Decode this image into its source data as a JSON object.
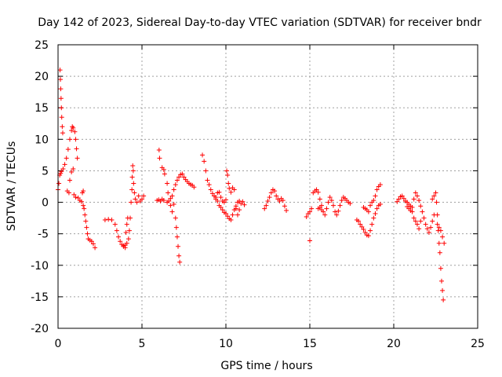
{
  "chart_data": {
    "type": "scatter",
    "title": "Day 142 of 2023, Sidereal Day-to-day VTEC variation (SDTVAR) for receiver bndr",
    "xlabel": "GPS time / hours",
    "ylabel": "SDTVAR / TECUs",
    "xlim": [
      0,
      25
    ],
    "ylim": [
      -20,
      25
    ],
    "xticks": [
      0,
      5,
      10,
      15,
      20,
      25
    ],
    "yticks": [
      -20,
      -15,
      -10,
      -5,
      0,
      5,
      10,
      15,
      20,
      25
    ],
    "grid": true,
    "marker": "plus",
    "color": "#ff0000",
    "series": [
      {
        "name": "sdtvar",
        "points": [
          [
            0.0,
            2.0
          ],
          [
            0.05,
            3.0
          ],
          [
            0.1,
            4.3
          ],
          [
            0.15,
            4.6
          ],
          [
            0.2,
            4.9
          ],
          [
            0.3,
            5.3
          ],
          [
            0.4,
            6.0
          ],
          [
            0.5,
            7.0
          ],
          [
            0.6,
            8.4
          ],
          [
            0.7,
            10.0
          ],
          [
            0.8,
            11.4
          ],
          [
            0.85,
            12.0
          ],
          [
            0.9,
            11.8
          ],
          [
            1.0,
            11.2
          ],
          [
            1.05,
            10.0
          ],
          [
            1.1,
            8.5
          ],
          [
            1.15,
            7.0
          ],
          [
            0.12,
            21.0
          ],
          [
            0.14,
            19.5
          ],
          [
            0.16,
            18.0
          ],
          [
            0.18,
            16.5
          ],
          [
            0.2,
            15.0
          ],
          [
            0.22,
            13.5
          ],
          [
            0.25,
            12.0
          ],
          [
            0.28,
            11.0
          ],
          [
            0.55,
            1.8
          ],
          [
            0.65,
            1.5
          ],
          [
            0.7,
            3.5
          ],
          [
            0.8,
            4.8
          ],
          [
            0.9,
            5.3
          ],
          [
            0.95,
            1.2
          ],
          [
            1.05,
            0.8
          ],
          [
            1.2,
            0.7
          ],
          [
            1.3,
            0.3
          ],
          [
            1.4,
            0.1
          ],
          [
            1.5,
            -0.5
          ],
          [
            1.55,
            -1.0
          ],
          [
            1.6,
            -2.0
          ],
          [
            1.65,
            -3.0
          ],
          [
            1.7,
            -4.0
          ],
          [
            1.75,
            -5.0
          ],
          [
            1.8,
            -5.8
          ],
          [
            1.9,
            -6.0
          ],
          [
            2.0,
            -6.2
          ],
          [
            2.1,
            -6.6
          ],
          [
            2.2,
            -7.2
          ],
          [
            1.45,
            1.5
          ],
          [
            1.5,
            1.8
          ],
          [
            2.8,
            -2.8
          ],
          [
            3.0,
            -2.7
          ],
          [
            3.2,
            -2.8
          ],
          [
            3.4,
            -3.5
          ],
          [
            3.5,
            -4.5
          ],
          [
            3.6,
            -5.5
          ],
          [
            3.7,
            -6.2
          ],
          [
            3.8,
            -6.7
          ],
          [
            3.9,
            -6.9
          ],
          [
            4.0,
            -6.8
          ],
          [
            4.1,
            -6.5
          ],
          [
            4.2,
            -5.8
          ],
          [
            4.25,
            -4.5
          ],
          [
            4.3,
            -2.5
          ],
          [
            4.35,
            0.0
          ],
          [
            4.4,
            2.0
          ],
          [
            4.42,
            4.0
          ],
          [
            4.45,
            5.8
          ],
          [
            4.48,
            5.0
          ],
          [
            4.5,
            3.0
          ],
          [
            4.55,
            1.5
          ],
          [
            4.6,
            0.5
          ],
          [
            4.7,
            0.0
          ],
          [
            4.8,
            1.0
          ],
          [
            4.9,
            0.2
          ],
          [
            5.0,
            0.5
          ],
          [
            5.1,
            1.0
          ],
          [
            3.9,
            -7.0
          ],
          [
            4.0,
            -7.2
          ],
          [
            4.05,
            -4.8
          ],
          [
            4.1,
            -3.5
          ],
          [
            4.15,
            -2.5
          ],
          [
            5.9,
            0.3
          ],
          [
            6.0,
            0.4
          ],
          [
            6.1,
            0.2
          ],
          [
            6.2,
            0.5
          ],
          [
            6.3,
            0.3
          ],
          [
            6.5,
            0.0
          ],
          [
            6.6,
            0.2
          ],
          [
            6.7,
            0.6
          ],
          [
            6.8,
            1.0
          ],
          [
            6.9,
            2.0
          ],
          [
            7.0,
            2.8
          ],
          [
            7.1,
            3.5
          ],
          [
            7.2,
            4.0
          ],
          [
            7.3,
            4.4
          ],
          [
            7.4,
            4.5
          ],
          [
            7.5,
            4.0
          ],
          [
            7.6,
            3.6
          ],
          [
            7.7,
            3.3
          ],
          [
            7.8,
            3.0
          ],
          [
            7.9,
            2.8
          ],
          [
            8.0,
            2.7
          ],
          [
            8.1,
            2.4
          ],
          [
            6.02,
            8.3
          ],
          [
            6.05,
            7.0
          ],
          [
            6.2,
            5.5
          ],
          [
            6.3,
            5.2
          ],
          [
            6.35,
            4.5
          ],
          [
            6.5,
            3.0
          ],
          [
            6.55,
            1.5
          ],
          [
            6.7,
            -0.5
          ],
          [
            6.8,
            -1.5
          ],
          [
            6.9,
            -0.3
          ],
          [
            7.0,
            -2.5
          ],
          [
            7.05,
            -4.0
          ],
          [
            7.1,
            -5.5
          ],
          [
            7.15,
            -7.0
          ],
          [
            7.2,
            -8.5
          ],
          [
            7.25,
            -9.5
          ],
          [
            8.6,
            7.5
          ],
          [
            8.7,
            6.5
          ],
          [
            8.8,
            5.0
          ],
          [
            8.9,
            3.5
          ],
          [
            9.0,
            2.8
          ],
          [
            9.1,
            2.0
          ],
          [
            9.2,
            1.4
          ],
          [
            9.3,
            1.0
          ],
          [
            9.4,
            0.5
          ],
          [
            9.5,
            0.2
          ],
          [
            9.6,
            -0.5
          ],
          [
            9.7,
            -0.8
          ],
          [
            9.8,
            -1.2
          ],
          [
            9.9,
            -1.6
          ],
          [
            10.0,
            -1.8
          ],
          [
            10.1,
            -2.2
          ],
          [
            10.2,
            -2.6
          ],
          [
            10.3,
            -2.8
          ],
          [
            10.4,
            -2.0
          ],
          [
            10.5,
            -1.2
          ],
          [
            10.6,
            -0.6
          ],
          [
            10.7,
            0.0
          ],
          [
            10.8,
            0.2
          ],
          [
            10.9,
            -0.2
          ],
          [
            11.0,
            0.1
          ],
          [
            11.1,
            -0.4
          ],
          [
            9.4,
            0.8
          ],
          [
            9.5,
            1.5
          ],
          [
            9.6,
            1.6
          ],
          [
            9.7,
            0.8
          ],
          [
            9.8,
            0.2
          ],
          [
            9.9,
            0.0
          ],
          [
            10.0,
            0.4
          ],
          [
            10.05,
            5.0
          ],
          [
            10.1,
            4.3
          ],
          [
            10.15,
            3.0
          ],
          [
            10.2,
            2.2
          ],
          [
            10.3,
            1.6
          ],
          [
            10.4,
            2.3
          ],
          [
            10.5,
            2.0
          ],
          [
            10.6,
            -1.0
          ],
          [
            10.7,
            -2.0
          ],
          [
            10.8,
            -1.2
          ],
          [
            12.3,
            -1.0
          ],
          [
            12.4,
            -0.5
          ],
          [
            12.5,
            0.2
          ],
          [
            12.6,
            0.8
          ],
          [
            12.7,
            1.5
          ],
          [
            12.8,
            2.0
          ],
          [
            12.9,
            1.8
          ],
          [
            13.0,
            1.0
          ],
          [
            13.1,
            0.5
          ],
          [
            13.2,
            0.2
          ],
          [
            13.3,
            0.6
          ],
          [
            13.4,
            0.3
          ],
          [
            13.5,
            -0.6
          ],
          [
            13.6,
            -1.3
          ],
          [
            14.8,
            -2.3
          ],
          [
            14.9,
            -1.8
          ],
          [
            15.0,
            -1.5
          ],
          [
            15.1,
            -1.0
          ],
          [
            15.2,
            1.5
          ],
          [
            15.3,
            1.8
          ],
          [
            15.4,
            2.0
          ],
          [
            15.5,
            1.6
          ],
          [
            15.6,
            0.5
          ],
          [
            15.7,
            -0.5
          ],
          [
            15.8,
            -1.5
          ],
          [
            15.9,
            -2.0
          ],
          [
            16.0,
            -1.0
          ],
          [
            16.1,
            0.0
          ],
          [
            16.2,
            0.8
          ],
          [
            16.3,
            0.3
          ],
          [
            16.4,
            -0.5
          ],
          [
            16.5,
            -1.5
          ],
          [
            16.6,
            -2.0
          ],
          [
            16.7,
            -1.4
          ],
          [
            16.8,
            -0.5
          ],
          [
            16.9,
            0.3
          ],
          [
            17.0,
            0.8
          ],
          [
            17.1,
            0.6
          ],
          [
            17.2,
            0.3
          ],
          [
            17.3,
            0.0
          ],
          [
            17.4,
            -0.2
          ],
          [
            15.0,
            -6.1
          ],
          [
            15.5,
            -1.0
          ],
          [
            15.6,
            -0.8
          ],
          [
            15.7,
            -1.2
          ],
          [
            17.8,
            -2.8
          ],
          [
            17.9,
            -3.0
          ],
          [
            18.0,
            -3.5
          ],
          [
            18.1,
            -3.9
          ],
          [
            18.2,
            -4.3
          ],
          [
            18.3,
            -4.8
          ],
          [
            18.4,
            -5.2
          ],
          [
            18.5,
            -5.3
          ],
          [
            18.6,
            -4.5
          ],
          [
            18.7,
            -3.5
          ],
          [
            18.8,
            -2.5
          ],
          [
            18.9,
            -1.8
          ],
          [
            19.0,
            -1.0
          ],
          [
            19.1,
            -0.5
          ],
          [
            19.2,
            -0.3
          ],
          [
            18.2,
            -0.8
          ],
          [
            18.3,
            -1.0
          ],
          [
            18.4,
            -1.2
          ],
          [
            18.5,
            -1.5
          ],
          [
            18.6,
            -0.5
          ],
          [
            18.7,
            0.0
          ],
          [
            18.8,
            0.3
          ],
          [
            18.9,
            1.0
          ],
          [
            19.0,
            2.0
          ],
          [
            19.1,
            2.5
          ],
          [
            19.2,
            2.8
          ],
          [
            20.2,
            0.1
          ],
          [
            20.3,
            0.5
          ],
          [
            20.4,
            0.9
          ],
          [
            20.5,
            1.0
          ],
          [
            20.6,
            0.6
          ],
          [
            20.7,
            0.2
          ],
          [
            20.8,
            0.0
          ],
          [
            20.9,
            -0.3
          ],
          [
            21.0,
            -0.6
          ],
          [
            21.1,
            -0.8
          ],
          [
            21.2,
            0.5
          ],
          [
            21.3,
            1.5
          ],
          [
            21.4,
            1.0
          ],
          [
            21.5,
            0.3
          ],
          [
            21.6,
            -0.6
          ],
          [
            21.7,
            -1.5
          ],
          [
            21.8,
            -2.5
          ],
          [
            21.9,
            -3.5
          ],
          [
            22.0,
            -4.2
          ],
          [
            22.1,
            -4.8
          ],
          [
            22.2,
            -4.0
          ],
          [
            22.3,
            -3.0
          ],
          [
            22.4,
            -2.0
          ],
          [
            20.8,
            -0.7
          ],
          [
            20.9,
            -1.0
          ],
          [
            21.0,
            -1.3
          ],
          [
            21.1,
            -1.5
          ],
          [
            21.2,
            -2.5
          ],
          [
            21.3,
            -3.0
          ],
          [
            21.4,
            -3.5
          ],
          [
            21.5,
            -4.2
          ],
          [
            21.6,
            -3.0
          ],
          [
            22.3,
            0.5
          ],
          [
            22.4,
            1.0
          ],
          [
            22.5,
            1.5
          ],
          [
            22.55,
            0.0
          ],
          [
            22.6,
            -2.0
          ],
          [
            22.65,
            -4.5
          ],
          [
            22.7,
            -6.5
          ],
          [
            22.75,
            -8.0
          ],
          [
            22.8,
            -10.5
          ],
          [
            22.85,
            -12.5
          ],
          [
            22.9,
            -14.0
          ],
          [
            22.95,
            -15.5
          ],
          [
            22.6,
            -3.5
          ],
          [
            22.7,
            -4.0
          ],
          [
            22.8,
            -4.5
          ],
          [
            22.9,
            -5.5
          ],
          [
            23.0,
            -6.5
          ]
        ]
      }
    ]
  }
}
